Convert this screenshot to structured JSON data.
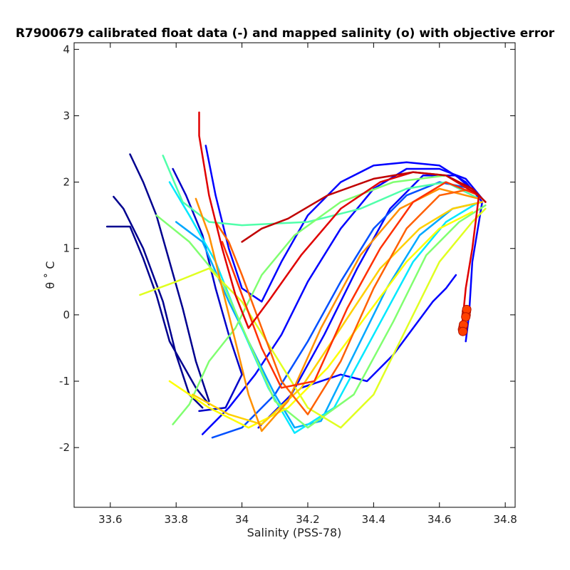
{
  "chart_data": {
    "type": "line",
    "title": "R7900679 calibrated float data (-) and mapped salinity (o) with objective error",
    "xlabel": "Salinity (PSS-78)",
    "ylabel": "θ ˚ C",
    "xlim": [
      33.49,
      34.83
    ],
    "ylim": [
      -2.9,
      4.1
    ],
    "xticks": [
      33.6,
      33.8,
      34,
      34.2,
      34.4,
      34.6,
      34.8
    ],
    "xtick_labels": [
      "33.6",
      "33.8",
      "34",
      "34.2",
      "34.4",
      "34.6",
      "34.8"
    ],
    "yticks": [
      -2,
      -1,
      0,
      1,
      2,
      3,
      4
    ],
    "ytick_labels": [
      "-2",
      "-1",
      "0",
      "1",
      "2",
      "3",
      "4"
    ],
    "grid": false,
    "colormap": "jet (profile order: blue early → red late)",
    "series": [
      {
        "color": "#00008f",
        "points": [
          [
            33.59,
            1.33
          ],
          [
            33.66,
            1.33
          ],
          [
            33.7,
            0.85
          ],
          [
            33.74,
            0.3
          ],
          [
            33.78,
            -0.4
          ],
          [
            33.86,
            -1.1
          ],
          [
            33.9,
            -1.35
          ]
        ]
      },
      {
        "color": "#00008f",
        "points": [
          [
            33.61,
            1.78
          ],
          [
            33.64,
            1.6
          ],
          [
            33.7,
            1.0
          ],
          [
            33.76,
            0.2
          ],
          [
            33.8,
            -0.6
          ],
          [
            33.84,
            -1.2
          ],
          [
            33.88,
            -1.4
          ]
        ]
      },
      {
        "color": "#00008f",
        "points": [
          [
            33.66,
            2.42
          ],
          [
            33.7,
            2.0
          ],
          [
            33.74,
            1.5
          ],
          [
            33.78,
            0.8
          ],
          [
            33.82,
            0.1
          ],
          [
            33.86,
            -0.7
          ],
          [
            33.9,
            -1.3
          ]
        ]
      },
      {
        "color": "#0000c8",
        "points": [
          [
            33.79,
            2.2
          ],
          [
            33.83,
            1.8
          ],
          [
            33.88,
            1.2
          ],
          [
            33.92,
            0.4
          ],
          [
            33.96,
            -0.3
          ],
          [
            34.0,
            -0.9
          ],
          [
            33.95,
            -1.4
          ],
          [
            33.87,
            -1.45
          ]
        ]
      },
      {
        "color": "#0000ff",
        "points": [
          [
            33.89,
            2.55
          ],
          [
            33.92,
            1.8
          ],
          [
            33.96,
            1.0
          ],
          [
            34.0,
            0.4
          ],
          [
            34.06,
            0.2
          ],
          [
            34.12,
            0.8
          ],
          [
            34.2,
            1.5
          ],
          [
            34.3,
            2.0
          ],
          [
            34.4,
            2.25
          ],
          [
            34.5,
            2.3
          ],
          [
            34.6,
            2.25
          ],
          [
            34.68,
            2.0
          ],
          [
            34.73,
            1.7
          ],
          [
            34.7,
            0.8
          ],
          [
            34.69,
            0.0
          ],
          [
            34.68,
            -0.4
          ]
        ]
      },
      {
        "color": "#0000ff",
        "points": [
          [
            33.88,
            -1.8
          ],
          [
            33.96,
            -1.4
          ],
          [
            34.04,
            -0.9
          ],
          [
            34.12,
            -0.3
          ],
          [
            34.2,
            0.5
          ],
          [
            34.3,
            1.3
          ],
          [
            34.4,
            1.9
          ],
          [
            34.5,
            2.2
          ],
          [
            34.6,
            2.2
          ],
          [
            34.68,
            2.05
          ],
          [
            34.73,
            1.75
          ]
        ]
      },
      {
        "color": "#0000ff",
        "points": [
          [
            34.05,
            -1.7
          ],
          [
            34.15,
            -1.2
          ],
          [
            34.25,
            -0.3
          ],
          [
            34.35,
            0.7
          ],
          [
            34.45,
            1.6
          ],
          [
            34.55,
            2.1
          ],
          [
            34.65,
            2.1
          ],
          [
            34.72,
            1.8
          ]
        ]
      },
      {
        "color": "#0000ff",
        "points": [
          [
            34.18,
            -1.1
          ],
          [
            34.3,
            -0.9
          ],
          [
            34.38,
            -1.0
          ],
          [
            34.46,
            -0.6
          ],
          [
            34.52,
            -0.2
          ],
          [
            34.58,
            0.2
          ],
          [
            34.62,
            0.4
          ],
          [
            34.65,
            0.6
          ]
        ]
      },
      {
        "color": "#0050ff",
        "points": [
          [
            33.91,
            -1.85
          ],
          [
            34.0,
            -1.7
          ],
          [
            34.1,
            -1.2
          ],
          [
            34.2,
            -0.4
          ],
          [
            34.3,
            0.5
          ],
          [
            34.4,
            1.3
          ],
          [
            34.5,
            1.8
          ],
          [
            34.6,
            2.0
          ],
          [
            34.7,
            1.9
          ],
          [
            34.74,
            1.7
          ]
        ]
      },
      {
        "color": "#00a8ff",
        "points": [
          [
            33.8,
            1.4
          ],
          [
            33.88,
            1.1
          ],
          [
            33.96,
            0.2
          ],
          [
            34.04,
            -0.6
          ],
          [
            34.1,
            -1.2
          ],
          [
            34.16,
            -1.7
          ],
          [
            34.24,
            -1.6
          ],
          [
            34.34,
            -0.6
          ],
          [
            34.44,
            0.4
          ],
          [
            34.54,
            1.2
          ],
          [
            34.64,
            1.6
          ],
          [
            34.73,
            1.7
          ]
        ]
      },
      {
        "color": "#00e8ff",
        "points": [
          [
            33.78,
            2.0
          ],
          [
            33.84,
            1.5
          ],
          [
            33.92,
            0.8
          ],
          [
            34.0,
            -0.2
          ],
          [
            34.08,
            -1.1
          ],
          [
            34.16,
            -1.78
          ],
          [
            34.28,
            -1.4
          ],
          [
            34.4,
            -0.3
          ],
          [
            34.52,
            0.8
          ],
          [
            34.62,
            1.4
          ],
          [
            34.72,
            1.7
          ]
        ]
      },
      {
        "color": "#50ffaa",
        "points": [
          [
            33.76,
            2.4
          ],
          [
            33.82,
            1.7
          ],
          [
            33.9,
            1.4
          ],
          [
            34.0,
            1.35
          ],
          [
            34.2,
            1.4
          ],
          [
            34.36,
            1.6
          ],
          [
            34.5,
            1.9
          ],
          [
            34.62,
            2.0
          ],
          [
            34.72,
            1.75
          ]
        ]
      },
      {
        "color": "#80ff70",
        "points": [
          [
            33.74,
            1.5
          ],
          [
            33.84,
            1.1
          ],
          [
            33.94,
            0.5
          ],
          [
            34.02,
            -0.4
          ],
          [
            34.1,
            -1.3
          ],
          [
            34.2,
            -1.7
          ],
          [
            34.34,
            -1.2
          ],
          [
            34.46,
            -0.1
          ],
          [
            34.56,
            0.9
          ],
          [
            34.66,
            1.4
          ],
          [
            34.74,
            1.65
          ]
        ]
      },
      {
        "color": "#80ff70",
        "points": [
          [
            33.79,
            -1.65
          ],
          [
            33.84,
            -1.35
          ],
          [
            33.9,
            -0.7
          ],
          [
            33.98,
            -0.2
          ],
          [
            34.06,
            0.6
          ],
          [
            34.16,
            1.2
          ],
          [
            34.3,
            1.7
          ],
          [
            34.46,
            2.0
          ],
          [
            34.62,
            2.1
          ],
          [
            34.72,
            1.8
          ]
        ]
      },
      {
        "color": "#e0ff20",
        "points": [
          [
            33.69,
            0.3
          ],
          [
            33.8,
            0.5
          ],
          [
            33.9,
            0.7
          ],
          [
            34.0,
            0.2
          ],
          [
            34.1,
            -0.6
          ],
          [
            34.2,
            -1.4
          ],
          [
            34.3,
            -1.7
          ],
          [
            34.4,
            -1.2
          ],
          [
            34.5,
            -0.2
          ],
          [
            34.6,
            0.8
          ],
          [
            34.7,
            1.4
          ],
          [
            34.74,
            1.6
          ]
        ]
      },
      {
        "color": "#ffff00",
        "points": [
          [
            33.78,
            -1.0
          ],
          [
            33.9,
            -1.4
          ],
          [
            34.02,
            -1.7
          ],
          [
            34.14,
            -1.4
          ],
          [
            34.26,
            -0.8
          ],
          [
            34.38,
            0.0
          ],
          [
            34.5,
            0.8
          ],
          [
            34.6,
            1.3
          ],
          [
            34.7,
            1.55
          ]
        ]
      },
      {
        "color": "#ffd000",
        "points": [
          [
            33.85,
            -1.2
          ],
          [
            33.96,
            -1.5
          ],
          [
            34.06,
            -1.65
          ],
          [
            34.18,
            -1.1
          ],
          [
            34.3,
            -0.2
          ],
          [
            34.42,
            0.7
          ],
          [
            34.54,
            1.3
          ],
          [
            34.64,
            1.6
          ],
          [
            34.73,
            1.7
          ]
        ]
      },
      {
        "color": "#ff9000",
        "points": [
          [
            33.86,
            1.75
          ],
          [
            33.9,
            1.2
          ],
          [
            33.94,
            0.4
          ],
          [
            33.98,
            -0.4
          ],
          [
            34.02,
            -1.2
          ],
          [
            34.06,
            -1.75
          ],
          [
            34.14,
            -1.3
          ],
          [
            34.24,
            -0.2
          ],
          [
            34.36,
            0.9
          ],
          [
            34.48,
            1.6
          ],
          [
            34.6,
            1.9
          ],
          [
            34.72,
            1.75
          ]
        ]
      },
      {
        "color": "#ff6000",
        "points": [
          [
            33.92,
            1.4
          ],
          [
            33.96,
            1.1
          ],
          [
            34.0,
            0.6
          ],
          [
            34.06,
            -0.2
          ],
          [
            34.12,
            -1.0
          ],
          [
            34.2,
            -1.5
          ],
          [
            34.3,
            -0.7
          ],
          [
            34.4,
            0.4
          ],
          [
            34.5,
            1.3
          ],
          [
            34.6,
            1.8
          ],
          [
            34.7,
            1.9
          ],
          [
            34.74,
            1.7
          ]
        ]
      },
      {
        "color": "#ff3000",
        "points": [
          [
            33.94,
            1.1
          ],
          [
            34.0,
            0.3
          ],
          [
            34.06,
            -0.5
          ],
          [
            34.12,
            -1.1
          ],
          [
            34.22,
            -1.0
          ],
          [
            34.32,
            0.1
          ],
          [
            34.42,
            1.0
          ],
          [
            34.52,
            1.7
          ],
          [
            34.62,
            2.0
          ],
          [
            34.72,
            1.8
          ]
        ]
      },
      {
        "color": "#e00000",
        "points": [
          [
            33.87,
            3.05
          ],
          [
            33.87,
            2.7
          ],
          [
            33.9,
            1.8
          ],
          [
            33.94,
            1.0
          ],
          [
            33.98,
            0.3
          ],
          [
            34.02,
            -0.2
          ],
          [
            34.08,
            0.2
          ],
          [
            34.18,
            0.9
          ],
          [
            34.3,
            1.6
          ],
          [
            34.42,
            2.0
          ],
          [
            34.52,
            2.15
          ],
          [
            34.62,
            2.1
          ],
          [
            34.72,
            1.8
          ],
          [
            34.7,
            1.0
          ],
          [
            34.68,
            0.4
          ],
          [
            34.67,
            -0.1
          ],
          [
            34.67,
            -0.2
          ]
        ]
      },
      {
        "color": "#c00000",
        "points": [
          [
            34.0,
            1.1
          ],
          [
            34.06,
            1.3
          ],
          [
            34.14,
            1.45
          ],
          [
            34.26,
            1.8
          ],
          [
            34.4,
            2.05
          ],
          [
            34.52,
            2.15
          ],
          [
            34.62,
            2.1
          ],
          [
            34.7,
            1.9
          ],
          [
            34.74,
            1.7
          ]
        ]
      }
    ],
    "mapped_points": {
      "marker": "o",
      "color": "#ff4000",
      "points": [
        [
          34.682,
          0.05
        ],
        [
          34.681,
          0.0
        ],
        [
          34.683,
          0.08
        ],
        [
          34.68,
          -0.03
        ],
        [
          34.672,
          -0.18
        ],
        [
          34.67,
          -0.22
        ],
        [
          34.673,
          -0.15
        ],
        [
          34.671,
          -0.25
        ]
      ]
    }
  }
}
